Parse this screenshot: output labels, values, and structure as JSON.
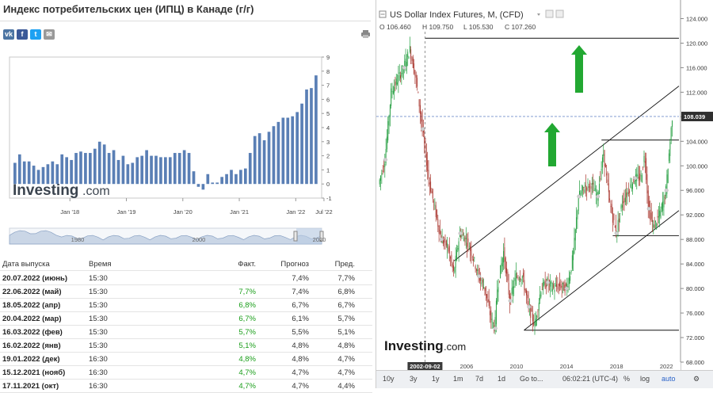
{
  "left": {
    "title": "Индекс потребительских цен (ИПЦ) в Канаде (г/г)",
    "share_icons": [
      {
        "name": "vk-icon",
        "glyph": "vk",
        "color": "#4c75a3"
      },
      {
        "name": "facebook-icon",
        "glyph": "f",
        "color": "#3b5998"
      },
      {
        "name": "twitter-icon",
        "glyph": "t",
        "color": "#1da1f2"
      },
      {
        "name": "email-icon",
        "glyph": "✉",
        "color": "#999999"
      }
    ],
    "watermark": "Investing",
    "watermark_suffix": ".com",
    "navigator_labels": [
      "1980",
      "2000",
      "2020"
    ],
    "table": {
      "headers": {
        "date": "Дата выпуска",
        "time": "Время",
        "actual": "Факт.",
        "forecast": "Прогноз",
        "previous": "Пред."
      },
      "rows": [
        {
          "date": "20.07.2022 (июнь)",
          "time": "15:30",
          "actual": "",
          "forecast": "7,4%",
          "previous": "7,7%"
        },
        {
          "date": "22.06.2022 (май)",
          "time": "15:30",
          "actual": "7,7%",
          "forecast": "7,4%",
          "previous": "6,8%"
        },
        {
          "date": "18.05.2022 (апр)",
          "time": "15:30",
          "actual": "6,8%",
          "forecast": "6,7%",
          "previous": "6,7%"
        },
        {
          "date": "20.04.2022 (мар)",
          "time": "15:30",
          "actual": "6,7%",
          "forecast": "6,1%",
          "previous": "5,7%"
        },
        {
          "date": "16.03.2022 (фев)",
          "time": "15:30",
          "actual": "5,7%",
          "forecast": "5,5%",
          "previous": "5,1%"
        },
        {
          "date": "16.02.2022 (янв)",
          "time": "15:30",
          "actual": "5,1%",
          "forecast": "4,8%",
          "previous": "4,8%"
        },
        {
          "date": "19.01.2022 (дек)",
          "time": "16:30",
          "actual": "4,8%",
          "forecast": "4,8%",
          "previous": "4,7%"
        },
        {
          "date": "15.12.2021 (нояб)",
          "time": "16:30",
          "actual": "4,7%",
          "forecast": "4,7%",
          "previous": "4,7%"
        },
        {
          "date": "17.11.2021 (окт)",
          "time": "16:30",
          "actual": "4,7%",
          "forecast": "4,7%",
          "previous": "4,4%"
        }
      ],
      "green_color": "#1a9e1a"
    }
  },
  "right": {
    "watermark": "Investing",
    "watermark_suffix": ".com",
    "toolbar": {
      "periods": [
        "10y",
        "3y",
        "1y",
        "1m",
        "7d",
        "1d"
      ],
      "goto": "Go to...",
      "clock": "06:02:21 (UTC-4)",
      "percent": "%",
      "log": "log",
      "auto": "auto"
    }
  },
  "chart_data": [
    {
      "type": "bar",
      "ylim": [
        -1,
        9
      ],
      "yticks": [
        "-1",
        "0",
        "1",
        "2",
        "3",
        "4",
        "5",
        "6",
        "7",
        "8",
        "9"
      ],
      "xticks": [
        "Jan '18",
        "Jan '19",
        "Jan '20",
        "Jan '21",
        "Jan '22",
        "Jul '22"
      ],
      "start": "Jan '17",
      "bar_color": "#5a7fb5",
      "values": [
        1.5,
        2.1,
        1.6,
        1.6,
        1.3,
        1.0,
        1.2,
        1.4,
        1.6,
        1.4,
        2.1,
        1.9,
        1.7,
        2.2,
        2.3,
        2.2,
        2.2,
        2.5,
        3.0,
        2.8,
        2.2,
        2.4,
        1.7,
        2.0,
        1.4,
        1.5,
        1.9,
        2.0,
        2.4,
        2.0,
        2.0,
        1.9,
        1.9,
        1.9,
        2.2,
        2.2,
        2.4,
        2.2,
        0.9,
        -0.2,
        -0.4,
        0.7,
        0.1,
        0.1,
        0.5,
        0.7,
        1.0,
        0.7,
        1.0,
        1.1,
        2.2,
        3.4,
        3.6,
        3.1,
        3.7,
        4.1,
        4.4,
        4.7,
        4.7,
        4.8,
        5.1,
        5.7,
        6.7,
        6.8,
        7.7
      ]
    },
    {
      "type": "line",
      "series_name": "US Dollar Index Futures, M, (CFD)",
      "ohlc": {
        "O": "106.460",
        "H": "109.750",
        "L": "105.530",
        "C": "107.260"
      },
      "ylim": [
        68,
        126
      ],
      "yticks": [
        "68.000",
        "72.000",
        "76.000",
        "80.000",
        "84.000",
        "88.000",
        "92.000",
        "96.000",
        "100.000",
        "104.000",
        "108.000",
        "112.000",
        "116.000",
        "120.000",
        "124.000"
      ],
      "xticks": [
        "2006",
        "2010",
        "2014",
        "2018",
        "2022"
      ],
      "xlim": [
        1998.9,
        2023.0
      ],
      "crosshair_label": "2002-09-02",
      "crosshair_x": 2002.67,
      "price_label": "108.039",
      "price_level": 108.04,
      "h_levels": [
        120.8,
        104.2,
        88.6,
        73.2
      ],
      "up_color": "#1f9c3c",
      "down_color": "#a8332b",
      "arrow_color": "#22a832",
      "x": [
        1999.0,
        1999.5,
        2000.0,
        2000.5,
        2001.0,
        2001.5,
        2002.0,
        2002.5,
        2003.0,
        2003.5,
        2004.0,
        2004.5,
        2005.0,
        2005.5,
        2006.0,
        2006.5,
        2007.0,
        2007.5,
        2008.0,
        2008.3,
        2008.5,
        2009.0,
        2009.5,
        2010.0,
        2010.5,
        2011.0,
        2011.5,
        2012.0,
        2012.5,
        2013.0,
        2013.5,
        2014.0,
        2014.3,
        2014.6,
        2015.0,
        2015.5,
        2016.0,
        2016.5,
        2017.0,
        2017.5,
        2018.0,
        2018.5,
        2019.0,
        2019.5,
        2020.0,
        2020.3,
        2020.6,
        2021.0,
        2021.5,
        2022.0,
        2022.5
      ],
      "y": [
        97.0,
        101.0,
        112.0,
        114.0,
        116.0,
        119.0,
        114.0,
        106.0,
        98.0,
        93.0,
        88.0,
        87.0,
        82.5,
        89.0,
        88.0,
        85.5,
        82.0,
        80.0,
        75.0,
        73.5,
        80.0,
        86.0,
        78.0,
        82.0,
        82.0,
        77.0,
        74.0,
        80.0,
        81.0,
        80.0,
        80.5,
        80.0,
        82.0,
        86.0,
        95.0,
        96.5,
        97.0,
        95.0,
        102.0,
        94.0,
        89.0,
        94.0,
        96.0,
        98.0,
        98.0,
        102.0,
        93.0,
        90.0,
        92.0,
        96.0,
        108.0
      ]
    }
  ]
}
